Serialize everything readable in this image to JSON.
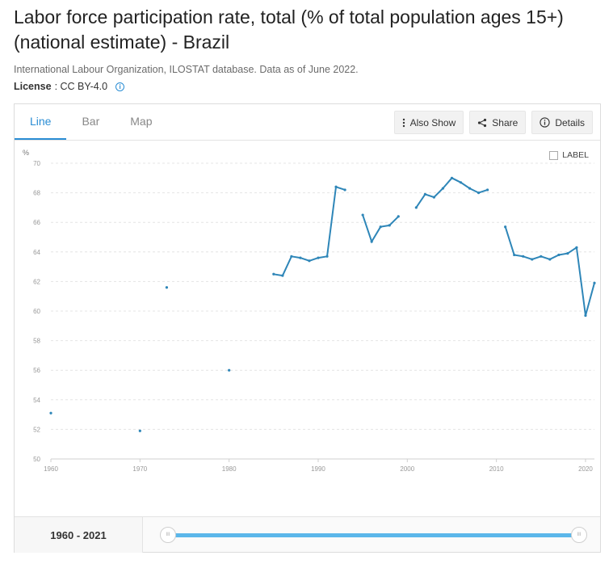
{
  "header": {
    "title": "Labor force participation rate, total (% of total population ages 15+) (national estimate) - Brazil",
    "source": "International Labour Organization, ILOSTAT database. Data as of June 2022.",
    "license_key": "License",
    "license_value": " : CC BY-4.0"
  },
  "tabs": [
    {
      "label": "Line",
      "active": true
    },
    {
      "label": "Bar",
      "active": false
    },
    {
      "label": "Map",
      "active": false
    }
  ],
  "actions": {
    "also_show": "Also Show",
    "share": "Share",
    "details": "Details"
  },
  "label_toggle": "LABEL",
  "footer": {
    "range": "1960 - 2021"
  },
  "colors": {
    "accent": "#2a8dd4",
    "series": "#2e86b8",
    "slider": "#5bb7ea"
  },
  "chart_data": {
    "type": "line",
    "ylabel": "%",
    "xlim": [
      1960,
      2021
    ],
    "ylim": [
      50,
      70
    ],
    "y_ticks": [
      50,
      52,
      54,
      56,
      58,
      60,
      62,
      64,
      66,
      68,
      70
    ],
    "x_ticks": [
      1960,
      1970,
      1980,
      1990,
      2000,
      2010,
      2020
    ],
    "grid": true,
    "series": [
      {
        "values": [
          [
            1960,
            53.1
          ],
          [
            1970,
            51.9
          ],
          [
            1973,
            61.6
          ],
          [
            1980,
            56.0
          ],
          [
            1985,
            62.5
          ],
          [
            1986,
            62.4
          ],
          [
            1987,
            63.7
          ],
          [
            1988,
            63.6
          ],
          [
            1989,
            63.4
          ],
          [
            1990,
            63.6
          ],
          [
            1991,
            63.7
          ],
          [
            1992,
            68.4
          ],
          [
            1993,
            68.2
          ],
          [
            1995,
            66.5
          ],
          [
            1996,
            64.7
          ],
          [
            1997,
            65.7
          ],
          [
            1998,
            65.8
          ],
          [
            1999,
            66.4
          ],
          [
            2001,
            67.0
          ],
          [
            2002,
            67.9
          ],
          [
            2003,
            67.7
          ],
          [
            2004,
            68.3
          ],
          [
            2005,
            69.0
          ],
          [
            2006,
            68.7
          ],
          [
            2007,
            68.3
          ],
          [
            2008,
            68.0
          ],
          [
            2009,
            68.2
          ],
          [
            2011,
            65.7
          ],
          [
            2012,
            63.8
          ],
          [
            2013,
            63.7
          ],
          [
            2014,
            63.5
          ],
          [
            2015,
            63.7
          ],
          [
            2016,
            63.5
          ],
          [
            2017,
            63.8
          ],
          [
            2018,
            63.9
          ],
          [
            2019,
            64.3
          ],
          [
            2020,
            59.7
          ],
          [
            2021,
            61.9
          ]
        ]
      }
    ]
  }
}
